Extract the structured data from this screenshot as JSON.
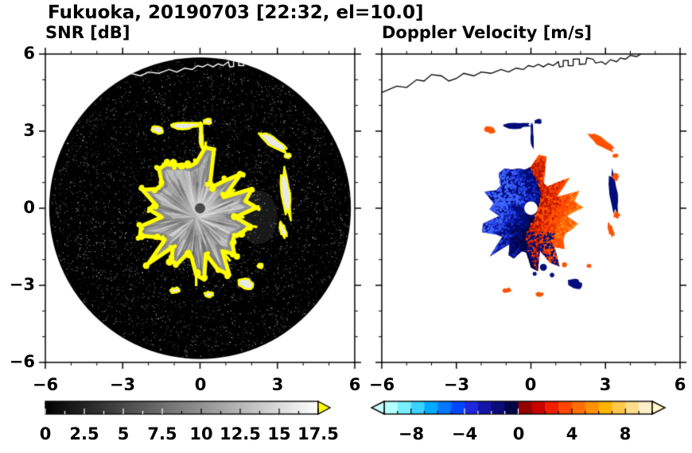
{
  "header": {
    "title": "Fukuoka, 20190703 [22:32, el=10.0]"
  },
  "chart_data": [
    {
      "type": "heatmap",
      "title": "SNR [dB]",
      "xlim": [
        -6,
        6
      ],
      "ylim": [
        -6,
        6
      ],
      "xticks": [
        -6,
        -3,
        0,
        3,
        6
      ],
      "yticks": [
        6,
        3,
        0,
        -3,
        -6
      ],
      "xtick_labels": [
        "−6",
        "−3",
        "0",
        "3",
        "6"
      ],
      "ytick_labels": [
        "6",
        "3",
        "0",
        "−3",
        "−6"
      ],
      "grid": false,
      "colorbar": {
        "min": 0,
        "max": 17.5,
        "tick_labels": [
          "0",
          "2.5",
          "5",
          "7.5",
          "10",
          "12.5",
          "15",
          "17.5"
        ],
        "colors": [
          "#000000",
          "#ffffff"
        ],
        "over_color": "#ffff00"
      },
      "features": {
        "radar_disc": {
          "cx": 0,
          "cy": 0,
          "r": 5.85,
          "color": "#000000"
        },
        "echo": {
          "cx": -0.15,
          "cy": -0.35,
          "r": 1.85,
          "fill": "#bdbdbd",
          "edge_color": "#ffff00",
          "center_dot": {
            "r": 0.2,
            "color": "#4a4a4a"
          }
        },
        "coastline": [
          [
            -6.0,
            4.5
          ],
          [
            -5.4,
            4.75
          ],
          [
            -5.0,
            4.7
          ],
          [
            -4.6,
            5.0
          ],
          [
            -4.3,
            4.95
          ],
          [
            -4.0,
            5.2
          ],
          [
            -3.6,
            5.15
          ],
          [
            -3.3,
            4.95
          ],
          [
            -3.0,
            5.05
          ],
          [
            -2.7,
            5.25
          ],
          [
            -2.3,
            5.15
          ],
          [
            -2.0,
            5.3
          ],
          [
            -1.6,
            5.25
          ],
          [
            -1.2,
            5.4
          ],
          [
            -0.9,
            5.3
          ],
          [
            -0.6,
            5.45
          ],
          [
            -0.3,
            5.4
          ],
          [
            -0.1,
            5.55
          ],
          [
            0.1,
            5.5
          ],
          [
            0.3,
            5.6
          ],
          [
            0.5,
            5.5
          ],
          [
            0.7,
            5.62
          ],
          [
            0.9,
            5.55
          ],
          [
            1.1,
            5.7
          ],
          [
            1.15,
            5.5
          ],
          [
            1.3,
            5.52
          ],
          [
            1.3,
            5.75
          ],
          [
            1.5,
            5.75
          ],
          [
            1.5,
            5.55
          ],
          [
            1.7,
            5.55
          ],
          [
            1.7,
            5.8
          ],
          [
            1.95,
            5.8
          ],
          [
            1.95,
            5.6
          ],
          [
            2.2,
            5.62
          ],
          [
            2.25,
            5.85
          ],
          [
            2.5,
            5.8
          ],
          [
            2.6,
            5.65
          ],
          [
            2.85,
            5.7
          ],
          [
            3.0,
            5.6
          ],
          [
            3.2,
            5.78
          ],
          [
            3.45,
            5.7
          ],
          [
            3.6,
            5.85
          ],
          [
            3.8,
            5.8
          ],
          [
            4.0,
            5.95
          ],
          [
            4.25,
            5.9
          ],
          [
            4.5,
            6.05
          ]
        ],
        "patches": [
          {
            "x": -1.65,
            "y": 3.05,
            "rx": 0.26,
            "ry": 0.16,
            "rot": -15,
            "vel": "pos"
          },
          {
            "x": -0.55,
            "y": 3.22,
            "rx": 0.5,
            "ry": 0.13,
            "rot": 4,
            "vel": "neg"
          },
          {
            "x": 0.28,
            "y": 3.38,
            "rx": 0.16,
            "ry": 0.09,
            "rot": 0,
            "vel": "neg"
          },
          {
            "x": 0.05,
            "y": 2.75,
            "rx": 0.07,
            "ry": 0.55,
            "rot": 2,
            "vel": "neg"
          },
          {
            "x": 2.85,
            "y": 2.55,
            "rx": 0.55,
            "ry": 0.16,
            "rot": -32,
            "vel": "pos"
          },
          {
            "x": 3.4,
            "y": 2.05,
            "rx": 0.13,
            "ry": 0.09,
            "rot": 0,
            "vel": "pos"
          },
          {
            "x": 3.35,
            "y": 0.55,
            "rx": 0.17,
            "ry": 0.85,
            "rot": 7,
            "vel": "mix"
          },
          {
            "x": 3.2,
            "y": -0.85,
            "rx": 0.11,
            "ry": 0.3,
            "rot": 18,
            "vel": "pos"
          },
          {
            "x": 1.8,
            "y": -2.95,
            "rx": 0.3,
            "ry": 0.2,
            "rot": -10,
            "vel": "neg"
          },
          {
            "x": 2.35,
            "y": -2.25,
            "rx": 0.1,
            "ry": 0.08,
            "rot": 0,
            "vel": "pos"
          },
          {
            "x": 0.35,
            "y": -3.35,
            "rx": 0.16,
            "ry": 0.09,
            "rot": 0,
            "vel": "pos"
          },
          {
            "x": -0.95,
            "y": -3.2,
            "rx": 0.18,
            "ry": 0.1,
            "rot": 0,
            "vel": "pos"
          }
        ]
      }
    },
    {
      "type": "heatmap",
      "title": "Doppler Velocity [m/s]",
      "xlim": [
        -6,
        6
      ],
      "ylim": [
        -6,
        6
      ],
      "xticks": [
        -6,
        -3,
        0,
        3,
        6
      ],
      "yticks": [
        6,
        3,
        0,
        -3,
        -6
      ],
      "xtick_labels": [
        "−6",
        "−3",
        "0",
        "3",
        "6"
      ],
      "grid": false,
      "colorbar": {
        "min": -10,
        "max": 10,
        "tick_labels": [
          "−8",
          "−4",
          "0",
          "4",
          "8"
        ],
        "neg_colors": [
          "#b4ffff",
          "#78f0ff",
          "#3cd2ff",
          "#00aaff",
          "#0078ff",
          "#0046ff",
          "#1e28dc",
          "#1414aa",
          "#0a0a78",
          "#000546"
        ],
        "pos_colors": [
          "#960000",
          "#c80000",
          "#f01e00",
          "#ff4600",
          "#ff6e00",
          "#ff9100",
          "#ffb400",
          "#ffc84b",
          "#ffdc8c",
          "#ffeec8"
        ],
        "under_color": "#ccffff",
        "over_color": "#ffffcc"
      },
      "features": {
        "blob": {
          "cx": 0.0,
          "cy": -0.3,
          "r": 1.7
        },
        "center_dot": {
          "r": 0.27,
          "color": "#ffffff"
        },
        "neg_color": "#000d7a",
        "pos_color": "#ff5200",
        "neg_shades": [
          "#000540",
          "#000d7a",
          "#1126c0",
          "#2a49e8",
          "#3f66ff"
        ],
        "pos_shades": [
          "#b41400",
          "#e12800",
          "#ff4600",
          "#ff6c00",
          "#ff8d1e"
        ]
      }
    }
  ]
}
